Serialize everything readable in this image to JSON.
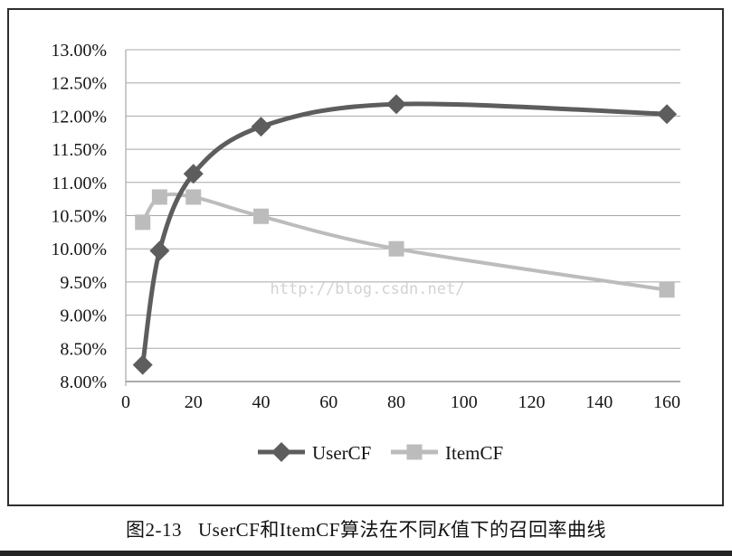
{
  "figure": {
    "watermark": "http://blog.csdn.net/",
    "caption": {
      "label": "图2-13",
      "before_k": "UserCF和ItemCF算法在不同",
      "k": "K",
      "after_k": "值下的召回率曲线"
    }
  },
  "chart_data": {
    "type": "line",
    "title": "",
    "xlabel": "",
    "ylabel": "",
    "x": [
      5,
      10,
      20,
      40,
      80,
      160
    ],
    "series": [
      {
        "name": "ItemCF",
        "values": [
          10.4,
          10.78,
          10.78,
          10.49,
          10.0,
          9.38
        ],
        "color": "#bcbcbc",
        "marker": "square",
        "line_width": 4
      },
      {
        "name": "UserCF",
        "values": [
          8.25,
          9.97,
          11.13,
          11.84,
          12.18,
          12.03
        ],
        "color": "#5d5d5d",
        "marker": "diamond",
        "line_width": 5
      }
    ],
    "x_ticks": [
      0,
      20,
      40,
      60,
      80,
      100,
      120,
      140,
      160
    ],
    "y_ticks": [
      "13.00%",
      "12.50%",
      "12.00%",
      "11.50%",
      "11.00%",
      "10.50%",
      "10.00%",
      "9.50%",
      "9.00%",
      "8.50%",
      "8.00%"
    ],
    "xlim": [
      0,
      164
    ],
    "ylim": [
      8.0,
      13.0
    ],
    "grid": true,
    "smooth_lines": true,
    "legend_position": "bottom",
    "legend_order": [
      "UserCF",
      "ItemCF"
    ]
  },
  "colors": {
    "gridline": "#a8a8a8",
    "axis_line": "#8f8f8f",
    "tick_label": "#161616",
    "legend_label": "#161616",
    "watermark": "#d2d2d2",
    "frame_border": "#2e2e2e",
    "bottom_bar": "#242424"
  }
}
